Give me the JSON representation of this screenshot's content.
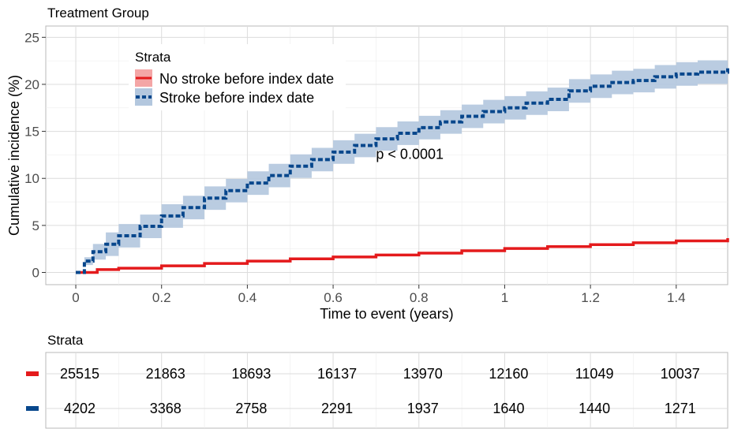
{
  "chart_data": {
    "type": "line",
    "title": "Treatment Group",
    "xlabel": "Time to event (years)",
    "ylabel": "Cumulative incidence (%)",
    "xlim": [
      -0.07,
      1.52
    ],
    "ylim": [
      -1.3,
      26.2
    ],
    "x_ticks": [
      0,
      0.2,
      0.4,
      0.6,
      0.8,
      1,
      1.2,
      1.4
    ],
    "x_tick_labels": [
      "0",
      "0.2",
      "0.4",
      "0.6",
      "0.8",
      "1",
      "1.2",
      "1.4"
    ],
    "y_ticks": [
      0,
      5,
      10,
      15,
      20,
      25
    ],
    "y_tick_labels": [
      "0",
      "5",
      "10",
      "15",
      "20",
      "25"
    ],
    "grid": true,
    "legend_title": "Strata",
    "legend_position": "top-left",
    "annotation": "p < 0.0001",
    "annotation_pos": {
      "x": 0.7,
      "y": 13.9
    },
    "series": [
      {
        "name": "No stroke before index date",
        "color": "#e41a1c",
        "band_color": "#f4a6a6",
        "line_style": "solid",
        "points": [
          [
            0,
            0
          ],
          [
            0.05,
            0.3
          ],
          [
            0.1,
            0.45
          ],
          [
            0.2,
            0.7
          ],
          [
            0.3,
            0.95
          ],
          [
            0.4,
            1.2
          ],
          [
            0.5,
            1.45
          ],
          [
            0.6,
            1.65
          ],
          [
            0.7,
            1.85
          ],
          [
            0.8,
            2.05
          ],
          [
            0.9,
            2.3
          ],
          [
            1.0,
            2.55
          ],
          [
            1.1,
            2.75
          ],
          [
            1.2,
            2.95
          ],
          [
            1.3,
            3.15
          ],
          [
            1.4,
            3.35
          ],
          [
            1.52,
            3.65
          ]
        ],
        "ci_halfwidth": 0.12
      },
      {
        "name": "Stroke before index date",
        "color": "#08478c",
        "band_color": "#b3c7de",
        "line_style": "dashed",
        "points": [
          [
            0,
            0
          ],
          [
            0.02,
            1.2
          ],
          [
            0.04,
            2.2
          ],
          [
            0.07,
            3.0
          ],
          [
            0.1,
            3.9
          ],
          [
            0.15,
            4.9
          ],
          [
            0.2,
            6.0
          ],
          [
            0.25,
            6.9
          ],
          [
            0.3,
            7.9
          ],
          [
            0.35,
            8.7
          ],
          [
            0.4,
            9.5
          ],
          [
            0.45,
            10.3
          ],
          [
            0.5,
            11.3
          ],
          [
            0.55,
            12.0
          ],
          [
            0.6,
            12.8
          ],
          [
            0.65,
            13.5
          ],
          [
            0.7,
            14.2
          ],
          [
            0.75,
            14.8
          ],
          [
            0.8,
            15.4
          ],
          [
            0.85,
            16.0
          ],
          [
            0.9,
            16.6
          ],
          [
            0.95,
            17.1
          ],
          [
            1.0,
            17.5
          ],
          [
            1.05,
            18.0
          ],
          [
            1.1,
            18.4
          ],
          [
            1.15,
            19.3
          ],
          [
            1.2,
            19.8
          ],
          [
            1.25,
            20.2
          ],
          [
            1.3,
            20.4
          ],
          [
            1.35,
            20.8
          ],
          [
            1.4,
            21.1
          ],
          [
            1.45,
            21.3
          ],
          [
            1.52,
            21.7
          ]
        ],
        "ci_halfwidth": 1.25
      }
    ],
    "risk_table": {
      "title": "Strata",
      "rows": [
        {
          "color": "#e41a1c",
          "values": [
            "25515",
            "21863",
            "18693",
            "16137",
            "13970",
            "12160",
            "11049",
            "10037"
          ]
        },
        {
          "color": "#08478c",
          "values": [
            "4202",
            "3368",
            "2758",
            "2291",
            "1937",
            "1640",
            "1440",
            "1271"
          ]
        }
      ]
    }
  }
}
